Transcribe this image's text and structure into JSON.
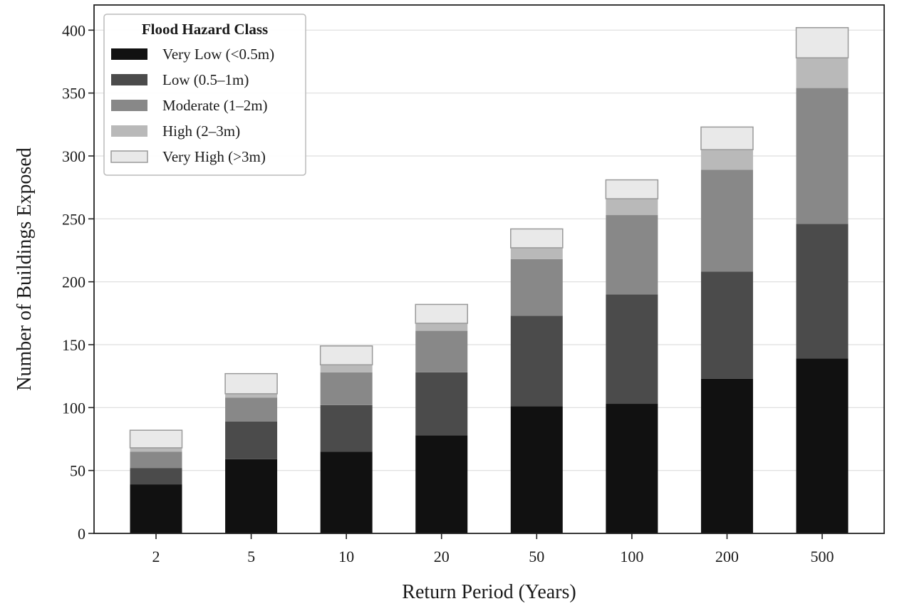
{
  "chart_data": {
    "type": "bar",
    "stacked": true,
    "categories": [
      "2",
      "5",
      "10",
      "20",
      "50",
      "100",
      "200",
      "500"
    ],
    "series": [
      {
        "name": "Very Low (<0.5m)",
        "color": "#111111",
        "values": [
          39,
          59,
          65,
          78,
          101,
          103,
          123,
          139
        ]
      },
      {
        "name": "Low (0.5–1m)",
        "color": "#4b4b4b",
        "values": [
          13,
          30,
          37,
          50,
          72,
          87,
          85,
          107
        ]
      },
      {
        "name": "Moderate (1–2m)",
        "color": "#888888",
        "values": [
          13,
          19,
          26,
          33,
          45,
          63,
          81,
          108
        ]
      },
      {
        "name": "High (2–3m)",
        "color": "#b9b9b9",
        "values": [
          3,
          3,
          6,
          6,
          9,
          13,
          16,
          24
        ]
      },
      {
        "name": "Very High (>3m)",
        "color": "#e9e9e9",
        "values": [
          14,
          16,
          15,
          15,
          15,
          15,
          18,
          24
        ]
      }
    ],
    "xlabel": "Return Period (Years)",
    "ylabel": "Number of Buildings Exposed",
    "ylim": [
      0,
      420
    ],
    "yticks": [
      "0",
      "50",
      "100",
      "150",
      "200",
      "250",
      "300",
      "350",
      "400"
    ],
    "grid": "horizontal",
    "legend": {
      "title": "Flood Hazard Class",
      "position": "top-left"
    }
  }
}
